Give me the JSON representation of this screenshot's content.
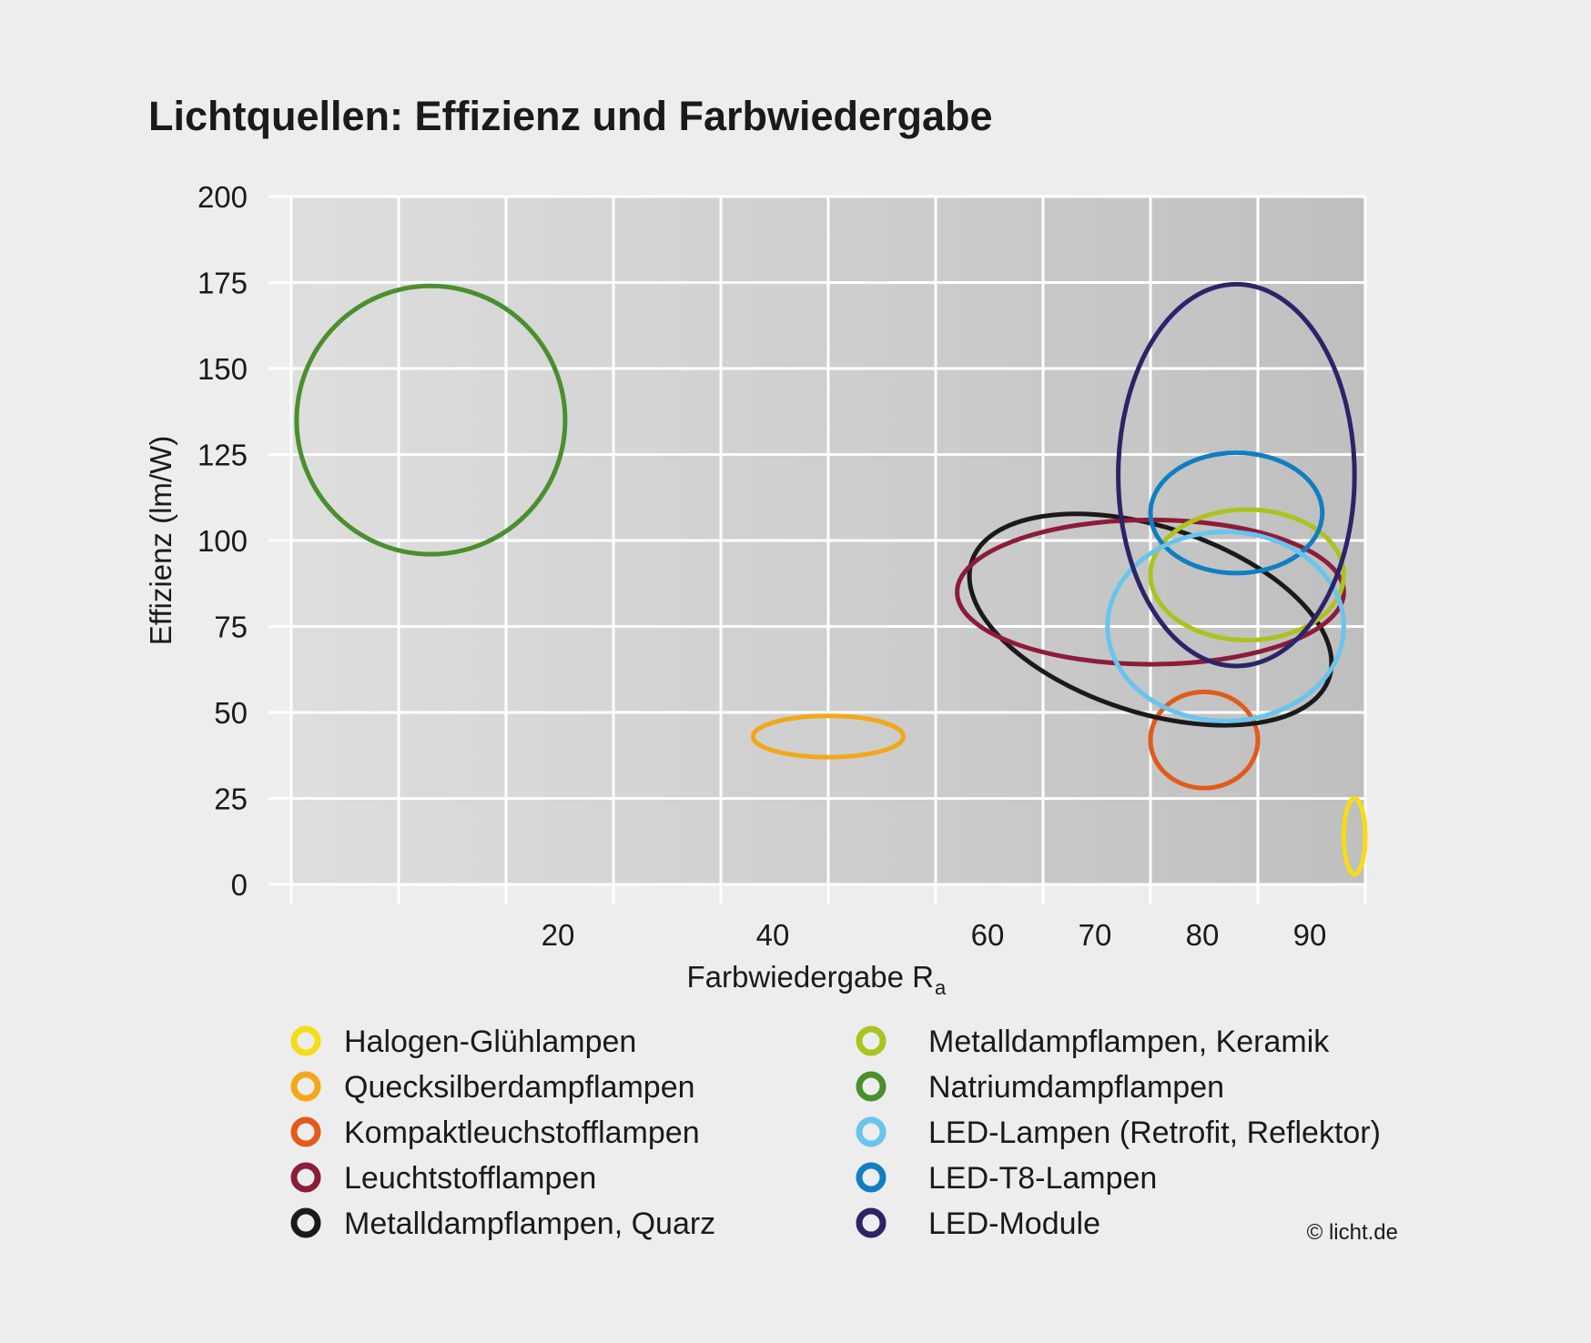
{
  "chart_data": {
    "type": "scatter",
    "title": "Lichtquellen: Effizienz und Farbwiedergabe",
    "xlabel": "Farbwiedergabe R",
    "xlabel_subscript": "a",
    "ylabel": "Effizienz (lm/W)",
    "xticks": [
      20,
      40,
      60,
      70,
      80,
      90
    ],
    "yticks": [
      0,
      25,
      50,
      75,
      100,
      125,
      150,
      175,
      200
    ],
    "ylim": [
      0,
      200
    ],
    "x_scale": "nonlinear (grid lines every 10 from 0 to 40, every 10 to 100)",
    "grid": true,
    "legend_position": "bottom",
    "series": [
      {
        "name": "Halogen-Glühlampen",
        "color": "#f5dc17",
        "ra_center": 99,
        "ra_range": [
          98,
          100
        ],
        "eff_center": 14,
        "eff_range": [
          3,
          25
        ]
      },
      {
        "name": "Quecksilberdampflampen",
        "color": "#f2a818",
        "ra_center": 50,
        "ra_range": [
          43,
          57
        ],
        "eff_center": 43,
        "eff_range": [
          37,
          49
        ]
      },
      {
        "name": "Kompaktleuchstofflampen",
        "color": "#e35a1a",
        "ra_center": 85,
        "ra_range": [
          80,
          90
        ],
        "eff_center": 42,
        "eff_range": [
          28,
          56
        ]
      },
      {
        "name": "Leuchtstofflampen",
        "color": "#8c1c38",
        "ra_center": 80,
        "ra_range": [
          62,
          98
        ],
        "eff_center": 85,
        "eff_range": [
          64,
          106
        ]
      },
      {
        "name": "Metalldampflampen, Quarz",
        "color": "#1a1a1a",
        "ra_center": 80,
        "ra_range": [
          60,
          95
        ],
        "eff_center": 77,
        "eff_range": [
          52,
          106
        ]
      },
      {
        "name": "Metalldampflampen, Keramik",
        "color": "#adc21e",
        "ra_center": 89,
        "ra_range": [
          80,
          98
        ],
        "eff_center": 90,
        "eff_range": [
          71,
          109
        ]
      },
      {
        "name": "Natriumdampflampen",
        "color": "#4a8f2e",
        "ra_center": 13,
        "ra_range": [
          1,
          26
        ],
        "eff_center": 135,
        "eff_range": [
          96,
          174
        ]
      },
      {
        "name": "LED-Lampen (Retrofit, Reflektor)",
        "color": "#69c4ee",
        "ra_center": 87,
        "ra_range": [
          76,
          98
        ],
        "eff_center": 75,
        "eff_range": [
          47,
          102
        ]
      },
      {
        "name": "LED-T8-Lampen",
        "color": "#117ec1",
        "ra_center": 88,
        "ra_range": [
          80,
          96
        ],
        "eff_center": 108,
        "eff_range": [
          91,
          126
        ]
      },
      {
        "name": "LED-Module",
        "color": "#2b2468",
        "ra_center": 88,
        "ra_range": [
          77,
          99
        ],
        "eff_center": 119,
        "eff_range": [
          63,
          174
        ]
      }
    ]
  },
  "credit": "© licht.de",
  "colors": {
    "background": "#ededed",
    "grid": "#ffffff"
  }
}
